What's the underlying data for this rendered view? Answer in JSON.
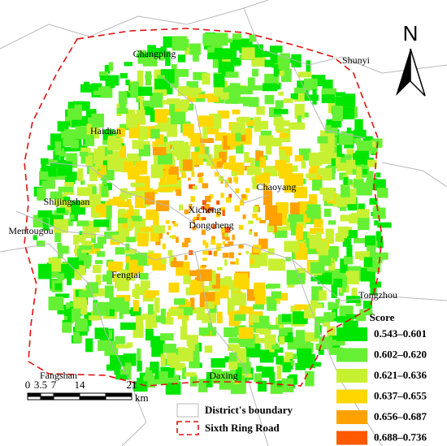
{
  "north": "N",
  "districts": [
    {
      "label": "Changping"
    },
    {
      "label": "Shunyi"
    },
    {
      "label": "Haidian"
    },
    {
      "label": "Chaoyang"
    },
    {
      "label": "Shijingshan"
    },
    {
      "label": "Xicheng"
    },
    {
      "label": "Dongcheng"
    },
    {
      "label": "Mentougou"
    },
    {
      "label": "Fengtai"
    },
    {
      "label": "Tongzhou"
    },
    {
      "label": "Fangshan"
    },
    {
      "label": "Daxing"
    }
  ],
  "legend": {
    "title": "Score",
    "items": [
      {
        "label": "0.543–0.601",
        "color": "#00e600"
      },
      {
        "label": "0.602–0.620",
        "color": "#66f033"
      },
      {
        "label": "0.621–0.636",
        "color": "#c8f032"
      },
      {
        "label": "0.637–0.655",
        "color": "#ffd700"
      },
      {
        "label": "0.656–0.687",
        "color": "#ffa100"
      },
      {
        "label": "0.688–0.736",
        "color": "#ff5a00"
      }
    ]
  },
  "scale_bar": {
    "labels": [
      "0",
      "3.5",
      "7",
      "14",
      "21"
    ],
    "unit": "km"
  },
  "boundary_legend": {
    "district": "District's boundary",
    "ring_road": "Sixth Ring Road"
  }
}
